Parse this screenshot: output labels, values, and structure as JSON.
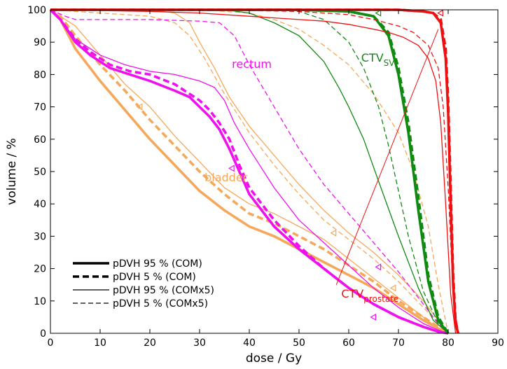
{
  "chart_data": {
    "type": "line",
    "xlabel": "dose / Gy",
    "ylabel": "volume / %",
    "xlim": [
      0,
      90
    ],
    "ylim": [
      0,
      100
    ],
    "xticks": [
      "0",
      "10",
      "20",
      "30",
      "40",
      "50",
      "60",
      "70",
      "80",
      "90"
    ],
    "yticks": [
      "0",
      "10",
      "20",
      "30",
      "40",
      "50",
      "60",
      "70",
      "80",
      "90",
      "100"
    ],
    "grid": false,
    "legend_position": "bottom-left",
    "colors": {
      "bladder": "#f5a85a",
      "rectum": "#ee11ee",
      "ctv_sv": "#118a11",
      "ctv_prostate": "#ee1111"
    },
    "annotations": [
      {
        "id": "rectum",
        "text": "rectum",
        "sub": "",
        "color": "#ee11ee",
        "x": 36.5,
        "y": 82
      },
      {
        "id": "bladder",
        "text": "bladder",
        "sub": "",
        "color": "#f5a85a",
        "x": 31,
        "y": 47
      },
      {
        "id": "ctvsv",
        "text": "CTV",
        "sub": "SV",
        "color": "#118a11",
        "x": 62.5,
        "y": 84
      },
      {
        "id": "ctvprostate",
        "text": "CTV",
        "sub": "prostate",
        "color": "#ee1111",
        "x": 58.5,
        "y": 11
      }
    ],
    "pointer_line": {
      "color": "#ee1111",
      "x": [
        57.5,
        78
      ],
      "y": [
        15,
        94
      ]
    },
    "legend": [
      {
        "label": "pDVH 95 % (COM)",
        "style": "solid",
        "weight": "thick"
      },
      {
        "label": "pDVH 5 % (COM)",
        "style": "dashed",
        "weight": "thick"
      },
      {
        "label": "pDVH 95 % (COMx5)",
        "style": "solid",
        "weight": "thin"
      },
      {
        "label": "pDVH 5 % (COMx5)",
        "style": "dashed",
        "weight": "thin"
      }
    ],
    "series": [
      {
        "structure": "bladder",
        "style": "solid",
        "weight": "thick",
        "x": [
          0,
          2,
          5,
          10,
          15,
          20,
          25,
          30,
          35,
          40,
          45,
          50,
          55,
          60,
          65,
          70,
          75,
          78,
          80
        ],
        "y": [
          100,
          97,
          88,
          78,
          69,
          60,
          52,
          44,
          38,
          33,
          30,
          26,
          22,
          18,
          14,
          9,
          4,
          1.5,
          0
        ]
      },
      {
        "structure": "bladder",
        "style": "dashed",
        "weight": "thick",
        "x": [
          0,
          2,
          5,
          10,
          15,
          20,
          25,
          30,
          35,
          40,
          45,
          50,
          55,
          60,
          65,
          70,
          75,
          78,
          80
        ],
        "y": [
          100,
          98,
          92,
          83,
          75,
          66,
          58,
          50,
          43,
          37,
          34,
          30,
          26,
          21,
          16,
          10,
          5,
          2,
          0
        ]
      },
      {
        "structure": "bladder",
        "style": "solid",
        "weight": "thin",
        "x": [
          0,
          5,
          10,
          15,
          20,
          25,
          30,
          35,
          40,
          45,
          50,
          55,
          60,
          65,
          70,
          75,
          78,
          80
        ],
        "y": [
          100,
          95,
          86,
          77,
          70,
          61,
          53,
          45,
          40,
          37,
          33,
          29,
          23,
          17,
          11,
          5,
          1.5,
          0
        ]
      },
      {
        "structure": "bladder",
        "style": "dashed",
        "weight": "thin",
        "x": [
          0,
          5,
          10,
          20,
          25,
          28,
          31,
          35,
          40,
          45,
          50,
          55,
          60,
          65,
          70,
          75,
          78,
          80
        ],
        "y": [
          100,
          99.5,
          99,
          98,
          96,
          92,
          85,
          74,
          62,
          52,
          43,
          35,
          29,
          23,
          16,
          8,
          3,
          0
        ]
      },
      {
        "structure": "bladder",
        "style": "solid",
        "weight": "thin",
        "x": [
          0,
          10,
          20,
          25,
          28,
          30,
          33,
          36,
          40,
          45,
          50,
          55,
          60,
          65,
          70,
          75,
          78,
          80
        ],
        "y": [
          100,
          100,
          100,
          99,
          96,
          90,
          82,
          73,
          64,
          55,
          46,
          38,
          31,
          25,
          18,
          10,
          4,
          0
        ]
      },
      {
        "structure": "bladder",
        "style": "dashed",
        "weight": "thin",
        "x": [
          0,
          20,
          30,
          40,
          45,
          50,
          55,
          60,
          65,
          70,
          73,
          76,
          78,
          80
        ],
        "y": [
          100,
          100,
          100,
          99,
          97,
          94,
          89,
          83,
          74,
          62,
          50,
          33,
          15,
          0
        ]
      },
      {
        "structure": "rectum",
        "style": "solid",
        "weight": "thick",
        "x": [
          0,
          2,
          5,
          8,
          12,
          16,
          20,
          25,
          28,
          30,
          32,
          34,
          36,
          38,
          40,
          45,
          50,
          55,
          60,
          65,
          70,
          75,
          78,
          80
        ],
        "y": [
          100,
          97,
          90,
          86,
          82,
          80,
          78,
          75,
          73,
          70,
          67,
          63,
          57,
          50,
          43,
          33,
          26,
          20,
          14,
          9,
          5,
          2,
          0.5,
          0
        ]
      },
      {
        "structure": "rectum",
        "style": "dashed",
        "weight": "thick",
        "x": [
          0,
          2,
          5,
          8,
          12,
          16,
          20,
          25,
          28,
          30,
          32,
          34,
          36,
          38,
          40,
          45,
          50,
          55,
          60,
          65,
          70,
          75,
          78,
          80
        ],
        "y": [
          100,
          97,
          91,
          87,
          83,
          81,
          80,
          77,
          74,
          72,
          69,
          65,
          60,
          52,
          45,
          35,
          27,
          20,
          14,
          9,
          5,
          2,
          0.5,
          0
        ]
      },
      {
        "structure": "rectum",
        "style": "solid",
        "weight": "thin",
        "x": [
          0,
          2,
          5,
          10,
          15,
          20,
          25,
          30,
          33,
          35,
          37,
          40,
          45,
          50,
          55,
          60,
          65,
          70,
          75,
          78,
          80
        ],
        "y": [
          100,
          97,
          91,
          86,
          83,
          81,
          80,
          78,
          76,
          72,
          65,
          57,
          45,
          35,
          28,
          21,
          14,
          8,
          3,
          1,
          0
        ]
      },
      {
        "structure": "rectum",
        "style": "dashed",
        "weight": "thin",
        "x": [
          0,
          3,
          5,
          10,
          20,
          30,
          34,
          37,
          40,
          45,
          50,
          55,
          60,
          65,
          70,
          75,
          78,
          80
        ],
        "y": [
          100,
          98,
          97,
          97,
          97,
          96.5,
          96,
          92,
          83,
          70,
          57,
          46,
          37,
          28,
          19,
          9,
          3,
          0
        ]
      },
      {
        "structure": "ctv_sv",
        "style": "solid",
        "weight": "thick",
        "x": [
          0,
          30,
          50,
          60,
          65,
          68,
          70,
          72,
          74,
          76,
          78,
          80
        ],
        "y": [
          100,
          100,
          100,
          99.5,
          98,
          92,
          80,
          62,
          38,
          16,
          4,
          0
        ]
      },
      {
        "structure": "ctv_sv",
        "style": "dashed",
        "weight": "thick",
        "x": [
          0,
          30,
          50,
          60,
          65,
          68,
          70,
          72,
          74,
          76,
          78,
          80
        ],
        "y": [
          100,
          100,
          100,
          99.5,
          98,
          93,
          82,
          65,
          42,
          18,
          5,
          0
        ]
      },
      {
        "structure": "ctv_sv",
        "style": "solid",
        "weight": "thin",
        "x": [
          0,
          35,
          40,
          45,
          50,
          55,
          58,
          60,
          63,
          66,
          70,
          74,
          77,
          80
        ],
        "y": [
          100,
          100,
          99,
          96,
          92,
          84,
          76,
          70,
          60,
          47,
          30,
          14,
          4,
          0
        ]
      },
      {
        "structure": "ctv_sv",
        "style": "dashed",
        "weight": "thin",
        "x": [
          0,
          40,
          50,
          55,
          60,
          63,
          66,
          68,
          70,
          72,
          75,
          78,
          80
        ],
        "y": [
          100,
          100,
          99.5,
          97,
          90,
          82,
          70,
          58,
          44,
          30,
          13,
          3,
          0
        ]
      },
      {
        "structure": "ctv_prostate",
        "style": "solid",
        "weight": "thick",
        "x": [
          0,
          60,
          70,
          75,
          77,
          78.5,
          79.5,
          80,
          80.5,
          81,
          81.5,
          82
        ],
        "y": [
          100,
          100,
          100,
          99.5,
          99,
          96,
          85,
          68,
          40,
          15,
          3,
          0
        ]
      },
      {
        "structure": "ctv_prostate",
        "style": "dashed",
        "weight": "thick",
        "x": [
          0,
          60,
          70,
          75,
          77,
          78.5,
          79.5,
          80,
          80.5,
          81,
          81.5,
          82
        ],
        "y": [
          100,
          100,
          100,
          99.5,
          99,
          97,
          88,
          72,
          45,
          18,
          4,
          0
        ]
      },
      {
        "structure": "ctv_prostate",
        "style": "solid",
        "weight": "thin",
        "x": [
          0,
          20,
          30,
          40,
          50,
          55,
          60,
          65,
          68,
          71,
          74,
          76,
          77.5,
          78.5,
          79.5,
          80.5,
          81.5
        ],
        "y": [
          100,
          99.5,
          99,
          98,
          97,
          96.5,
          95.5,
          94,
          93,
          91.5,
          89,
          85,
          78,
          65,
          40,
          12,
          0
        ]
      },
      {
        "structure": "ctv_prostate",
        "style": "dashed",
        "weight": "thin",
        "x": [
          0,
          30,
          50,
          60,
          65,
          70,
          73,
          76,
          78,
          79,
          80,
          81,
          82
        ],
        "y": [
          100,
          100,
          99.5,
          98.5,
          97,
          95,
          93,
          89,
          82,
          70,
          45,
          12,
          0
        ]
      }
    ],
    "markers": [
      {
        "structure": "bladder",
        "x": 18,
        "y": 70
      },
      {
        "structure": "bladder",
        "x": 57,
        "y": 31
      },
      {
        "structure": "bladder",
        "x": 69,
        "y": 14
      },
      {
        "structure": "rectum",
        "x": 36.5,
        "y": 51
      },
      {
        "structure": "rectum",
        "x": 66,
        "y": 20.5
      },
      {
        "structure": "rectum",
        "x": 65,
        "y": 5
      },
      {
        "structure": "ctv_sv",
        "x": 66,
        "y": 99
      },
      {
        "structure": "ctv_prostate",
        "x": 78.5,
        "y": 99
      }
    ]
  }
}
